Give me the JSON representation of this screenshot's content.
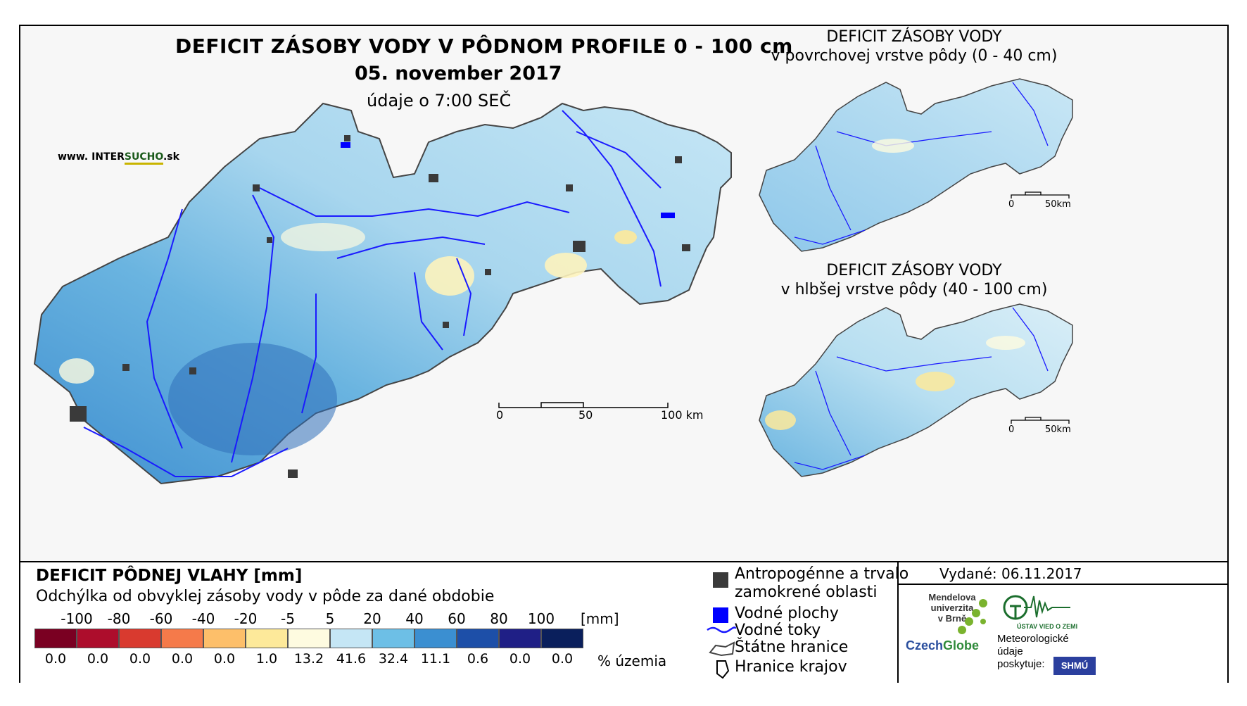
{
  "header": {
    "title": "DEFICIT ZÁSOBY VODY V PÔDNOM PROFILE 0 - 100 cm",
    "date": "05. november 2017",
    "time_note": "údaje o 7:00 SEČ",
    "website_prefix": "www. INTER",
    "website_brand": "SUCHO",
    "website_suffix": ".sk"
  },
  "main_map": {
    "scale_labels": [
      "0",
      "50",
      "100 km"
    ]
  },
  "insets": [
    {
      "title_line1": "DEFICIT ZÁSOBY VODY",
      "title_line2": "v povrchovej vrstve pôdy (0 - 40 cm)",
      "scale_labels": [
        "0",
        "50km"
      ]
    },
    {
      "title_line1": "DEFICIT ZÁSOBY VODY",
      "title_line2": "v hlbšej vrstve pôdy (40 - 100 cm)",
      "scale_labels": [
        "0",
        "50km"
      ]
    }
  ],
  "legend": {
    "title": "DEFICIT PÔDNEJ VLAHY [mm]",
    "subtitle": "Odchýlka od obvyklej zásoby vody v pôde za dané obdobie",
    "bin_edges": [
      "-100",
      "-80",
      "-60",
      "-40",
      "-20",
      "-5",
      "5",
      "20",
      "40",
      "60",
      "80",
      "100"
    ],
    "unit": "[mm]",
    "colors": [
      "#7a0022",
      "#ad0d2c",
      "#d93a2f",
      "#f57a4a",
      "#fdbf6a",
      "#fde99a",
      "#fefbe0",
      "#c5e6f5",
      "#6dbfe6",
      "#3b8fd1",
      "#1d4fa8",
      "#1f1f86",
      "#0a1f5c"
    ],
    "percentages": [
      "0.0",
      "0.0",
      "0.0",
      "0.0",
      "0.0",
      "1.0",
      "13.2",
      "41.6",
      "32.4",
      "11.1",
      "0.6",
      "0.0",
      "0.0"
    ],
    "percent_label": "% územia"
  },
  "map_legend": {
    "urban_line1": "Antropogénne a trvalo",
    "urban_line2": "zamokrené oblasti",
    "water_bodies": "Vodné plochy",
    "rivers": "Vodné toky",
    "state_border": "Štátne hranice",
    "region_border": "Hranice krajov",
    "urban_color": "#3a3a3a",
    "water_color": "#0000ff"
  },
  "issued": {
    "label": "Vydané: 06.11.2017"
  },
  "logos": {
    "mendel_line1": "Mendelova",
    "mendel_line2": "univerzita",
    "mendel_line3": "v Brně",
    "czechglobe_czech": "Czech",
    "czechglobe_globe": "Globe",
    "ustav_text": "ÚSTAV VIED O ZEMI",
    "meteo_line1": "Meteorologické",
    "meteo_line2": "údaje",
    "meteo_line3": "poskytuje:",
    "shmu": "SHMÚ"
  }
}
